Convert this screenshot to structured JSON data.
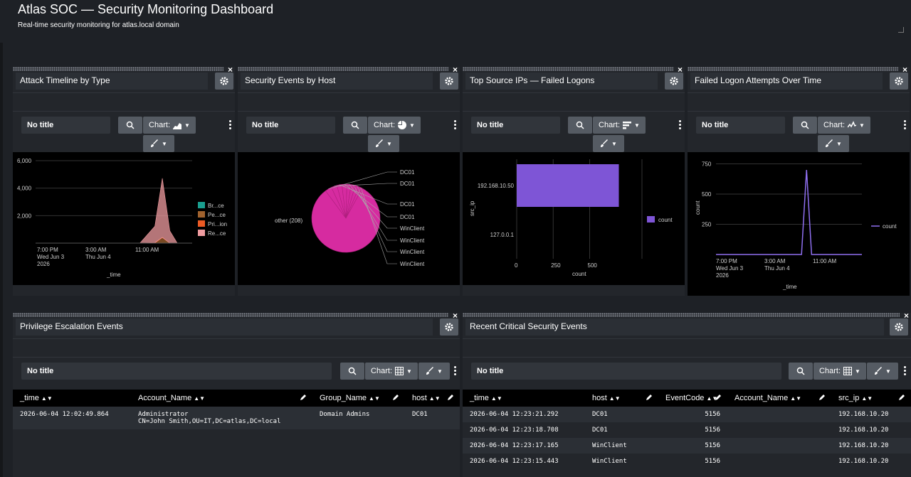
{
  "dashboard": {
    "title": "Atlas SOC — Security Monitoring Dashboard",
    "description": "Real-time security monitoring for atlas.local domain"
  },
  "common": {
    "no_title": "No title",
    "chart_label": "Chart:",
    "close": "×"
  },
  "panels": {
    "attack_timeline": {
      "title": "Attack Timeline by Type"
    },
    "events_by_host": {
      "title": "Security Events by Host"
    },
    "top_source_ips": {
      "title": "Top Source IPs — Failed Logons"
    },
    "failed_logons_time": {
      "title": "Failed Logon Attempts Over Time"
    },
    "priv_esc": {
      "title": "Privilege Escalation Events"
    },
    "recent_critical": {
      "title": "Recent Critical Security Events"
    }
  },
  "colors": {
    "area1": "#1a9e8f",
    "area2": "#a0622e",
    "area3": "#ec5a24",
    "area4": "#f09ca0",
    "pie": "#d62ba0",
    "bar": "#7e55d6",
    "line": "#8f6ff0"
  },
  "chart_data": [
    {
      "type": "area",
      "panel": "attack_timeline",
      "x_ticks": [
        [
          "7:00 PM",
          "Wed Jun 3",
          "2026"
        ],
        [
          "3:00 AM",
          "Thu Jun 4",
          ""
        ],
        [
          "11:00 AM",
          "",
          ""
        ]
      ],
      "y_ticks": [
        "6,000",
        "4,000",
        "2,000"
      ],
      "ylim": [
        0,
        6000
      ],
      "xlabel": "_time",
      "legend": [
        "Br...ce",
        "Pe...ce",
        "Pri...ion",
        "Re...ce"
      ],
      "series": [
        {
          "name": "Br...ce",
          "values": [
            0,
            0,
            0,
            0,
            0,
            0,
            0,
            0,
            0,
            0,
            0,
            0,
            0,
            0,
            0,
            0,
            0,
            0,
            0,
            0,
            0,
            0
          ]
        },
        {
          "name": "Pe...ce",
          "values": [
            0,
            0,
            0,
            0,
            0,
            0,
            0,
            0,
            0,
            0,
            0,
            0,
            0,
            0,
            0,
            0,
            0,
            400,
            0,
            0,
            0,
            0
          ]
        },
        {
          "name": "Pri...ion",
          "values": [
            0,
            0,
            0,
            0,
            0,
            0,
            0,
            0,
            0,
            0,
            0,
            0,
            0,
            0,
            0,
            20,
            30,
            20,
            0,
            0,
            0,
            0
          ]
        },
        {
          "name": "Re...ce",
          "values": [
            0,
            0,
            0,
            0,
            0,
            0,
            0,
            0,
            0,
            0,
            0,
            0,
            0,
            0,
            0,
            600,
            1200,
            4300,
            900,
            0,
            0,
            0
          ]
        }
      ]
    },
    {
      "type": "pie",
      "panel": "events_by_host",
      "slices": [
        {
          "label": "other (208)",
          "value": 208
        },
        {
          "label": "DC01",
          "value": 8
        },
        {
          "label": "DC01",
          "value": 7
        },
        {
          "label": "DC01",
          "value": 6
        },
        {
          "label": "DC01",
          "value": 6
        },
        {
          "label": "WinClient",
          "value": 5
        },
        {
          "label": "WinClient",
          "value": 5
        },
        {
          "label": "WinClient",
          "value": 5
        },
        {
          "label": "WinClient",
          "value": 4
        }
      ]
    },
    {
      "type": "bar",
      "panel": "top_source_ips",
      "orientation": "horizontal",
      "categories": [
        "192.168.10.50",
        "127.0.0.1"
      ],
      "values": [
        700,
        0
      ],
      "x_ticks": [
        "0",
        "250",
        "500"
      ],
      "xlim": [
        0,
        800
      ],
      "xlabel": "count",
      "ylabel": "src_ip",
      "legend": [
        "count"
      ]
    },
    {
      "type": "line",
      "panel": "failed_logons_time",
      "x_ticks": [
        [
          "7:00 PM",
          "Wed Jun 3",
          "2026"
        ],
        [
          "3:00 AM",
          "Thu Jun 4",
          ""
        ],
        [
          "11:00 AM",
          "",
          ""
        ]
      ],
      "y_ticks": [
        "750",
        "500",
        "250"
      ],
      "ylim": [
        0,
        800
      ],
      "xlabel": "_time",
      "ylabel": "count",
      "legend": [
        "count"
      ],
      "values": [
        0,
        0,
        0,
        0,
        0,
        0,
        0,
        0,
        0,
        0,
        0,
        0,
        0,
        0,
        0,
        0,
        0,
        0,
        700,
        0,
        0,
        0,
        0,
        0,
        0,
        0,
        0,
        0,
        0,
        0
      ]
    }
  ],
  "priv_table": {
    "columns": [
      "_time",
      "Account_Name",
      "Group_Name",
      "host"
    ],
    "rows": [
      [
        "2026-06-04 12:02:49.864",
        "Administrator\nCN=John Smith,OU=IT,DC=atlas,DC=local",
        "Domain Admins",
        "DC01"
      ]
    ]
  },
  "critical_table": {
    "columns": [
      "_time",
      "host",
      "EventCode",
      "Account_Name",
      "src_ip"
    ],
    "rows": [
      [
        "2026-06-04 12:23:21.292",
        "DC01",
        "5156",
        "",
        "192.168.10.20"
      ],
      [
        "2026-06-04 12:23:18.708",
        "DC01",
        "5156",
        "",
        "192.168.10.20"
      ],
      [
        "2026-06-04 12:23:17.165",
        "WinClient",
        "5156",
        "",
        "192.168.10.20"
      ],
      [
        "2026-06-04 12:23:15.443",
        "WinClient",
        "5156",
        "",
        "192.168.10.20"
      ]
    ]
  }
}
